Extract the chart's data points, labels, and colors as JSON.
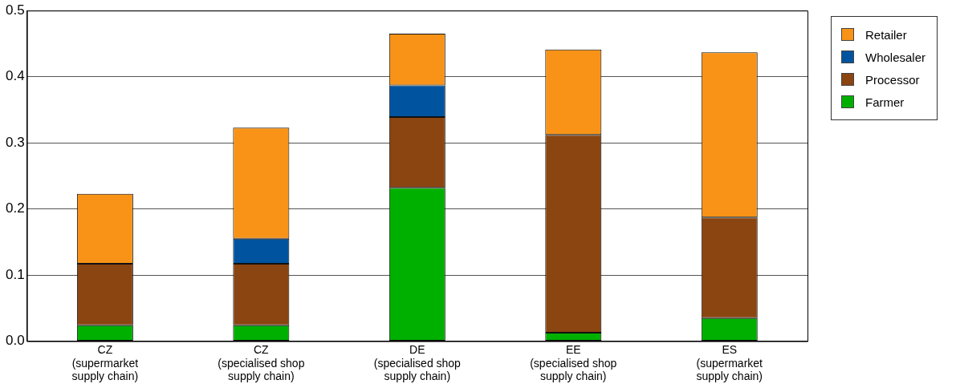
{
  "chart_data": {
    "type": "bar",
    "stacked": true,
    "categories": [
      "CZ\n(supermarket\nsupply chain)",
      "CZ\n(specialised shop\nsupply chain)",
      "DE\n(specialised shop\nsupply chain)",
      "EE\n(specialised shop\nsupply chain)",
      "ES\n(supermarket\nsupply chain)"
    ],
    "series": [
      {
        "name": "Farmer",
        "color": "#00b000",
        "values": [
          0.024,
          0.024,
          0.232,
          0.013,
          0.035
        ]
      },
      {
        "name": "Processor",
        "color": "#8b4511",
        "values": [
          0.093,
          0.093,
          0.107,
          0.299,
          0.152
        ]
      },
      {
        "name": "Wholesaler",
        "color": "#00549f",
        "values": [
          null,
          0.038,
          0.048,
          null,
          null
        ]
      },
      {
        "name": "Retailer",
        "color": "#f89318",
        "values": [
          0.106,
          0.168,
          0.078,
          0.129,
          0.25
        ]
      }
    ],
    "ylim": [
      0,
      0.5
    ],
    "yticks": [
      {
        "value": 0,
        "label": "0.0"
      },
      0.1,
      0.2,
      0.3,
      0.4,
      0.5
    ],
    "grid": "y",
    "legend": "right"
  }
}
